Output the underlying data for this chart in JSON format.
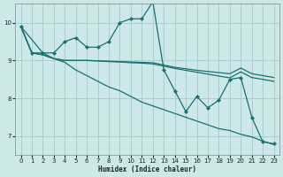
{
  "xlabel": "Humidex (Indice chaleur)",
  "background_color": "#cce8e8",
  "grid_color": "#aacece",
  "line_color": "#1a7070",
  "xlim": [
    -0.5,
    23.5
  ],
  "ylim": [
    6.5,
    10.5
  ],
  "yticks": [
    7,
    8,
    9,
    10
  ],
  "xticks": [
    0,
    1,
    2,
    3,
    4,
    5,
    6,
    7,
    8,
    9,
    10,
    11,
    12,
    13,
    14,
    15,
    16,
    17,
    18,
    19,
    20,
    21,
    22,
    23
  ],
  "series": {
    "wiggly": [
      9.9,
      9.2,
      9.2,
      9.2,
      9.5,
      9.6,
      9.35,
      9.35,
      9.5,
      10.0,
      10.1,
      10.1,
      10.55,
      8.75,
      8.2,
      7.65,
      8.05,
      7.75,
      7.95,
      8.5,
      8.55,
      7.5,
      6.85,
      6.8
    ],
    "diagonal": [
      9.9,
      9.55,
      9.2,
      9.05,
      8.95,
      8.75,
      8.6,
      8.45,
      8.3,
      8.2,
      8.05,
      7.9,
      7.8,
      7.7,
      7.6,
      7.5,
      7.4,
      7.3,
      7.2,
      7.15,
      7.05,
      6.98,
      6.87,
      6.78
    ],
    "upper_flat": [
      9.9,
      9.2,
      9.15,
      9.05,
      9.0,
      9.0,
      9.0,
      8.99,
      8.98,
      8.97,
      8.96,
      8.95,
      8.94,
      8.88,
      8.82,
      8.78,
      8.74,
      8.71,
      8.68,
      8.65,
      8.8,
      8.65,
      8.6,
      8.55
    ],
    "lower_flat": [
      9.9,
      9.2,
      9.15,
      9.05,
      9.0,
      9.0,
      9.0,
      8.99,
      8.97,
      8.96,
      8.94,
      8.93,
      8.91,
      8.85,
      8.79,
      8.74,
      8.69,
      8.64,
      8.59,
      8.54,
      8.7,
      8.55,
      8.5,
      8.45
    ]
  }
}
